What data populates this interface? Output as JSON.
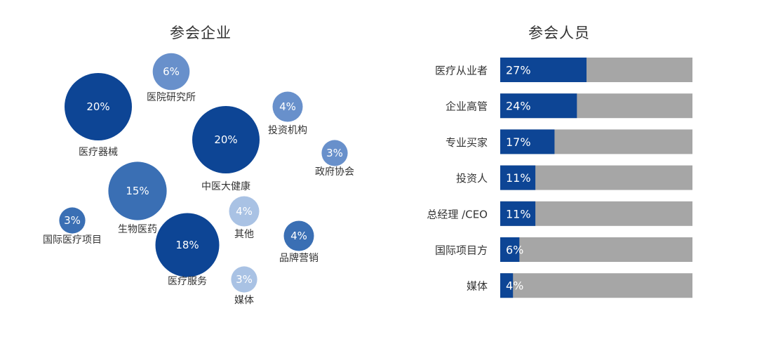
{
  "chart_data": [
    {
      "type": "bubble",
      "title": "参会企业",
      "unit": "%",
      "colors": {
        "dark": "#0d4595",
        "mid": "#3a6fb4",
        "light": "#6890cb",
        "pale": "#a9c2e4"
      },
      "points": [
        {
          "label": "医疗器械",
          "value": 20,
          "display": "20%",
          "tone": "dark"
        },
        {
          "label": "医院研究所",
          "value": 6,
          "display": "6%",
          "tone": "light"
        },
        {
          "label": "中医大健康",
          "value": 20,
          "display": "20%",
          "tone": "dark"
        },
        {
          "label": "投资机构",
          "value": 4,
          "display": "4%",
          "tone": "light"
        },
        {
          "label": "政府协会",
          "value": 3,
          "display": "3%",
          "tone": "light"
        },
        {
          "label": "生物医药",
          "value": 15,
          "display": "15%",
          "tone": "mid"
        },
        {
          "label": "国际医疗项目",
          "value": 3,
          "display": "3%",
          "tone": "mid"
        },
        {
          "label": "其他",
          "value": 4,
          "display": "4%",
          "tone": "pale"
        },
        {
          "label": "医疗服务",
          "value": 18,
          "display": "18%",
          "tone": "dark"
        },
        {
          "label": "品牌营销",
          "value": 4,
          "display": "4%",
          "tone": "mid"
        },
        {
          "label": "媒体",
          "value": 3,
          "display": "3%",
          "tone": "pale"
        }
      ]
    },
    {
      "type": "bar",
      "orientation": "horizontal",
      "title": "参会人员",
      "unit": "%",
      "xlim": [
        0,
        100
      ],
      "colors": {
        "fill": "#0d4595",
        "track": "#a6a6a6"
      },
      "categories": [
        "医疗从业者",
        "企业高管",
        "专业买家",
        "投资人",
        "总经理 /CEO",
        "国际项目方",
        "媒体"
      ],
      "values": [
        27,
        24,
        17,
        11,
        11,
        6,
        4
      ],
      "labels": [
        "27%",
        "24%",
        "17%",
        "11%",
        "11%",
        "6%",
        "4%"
      ]
    }
  ]
}
